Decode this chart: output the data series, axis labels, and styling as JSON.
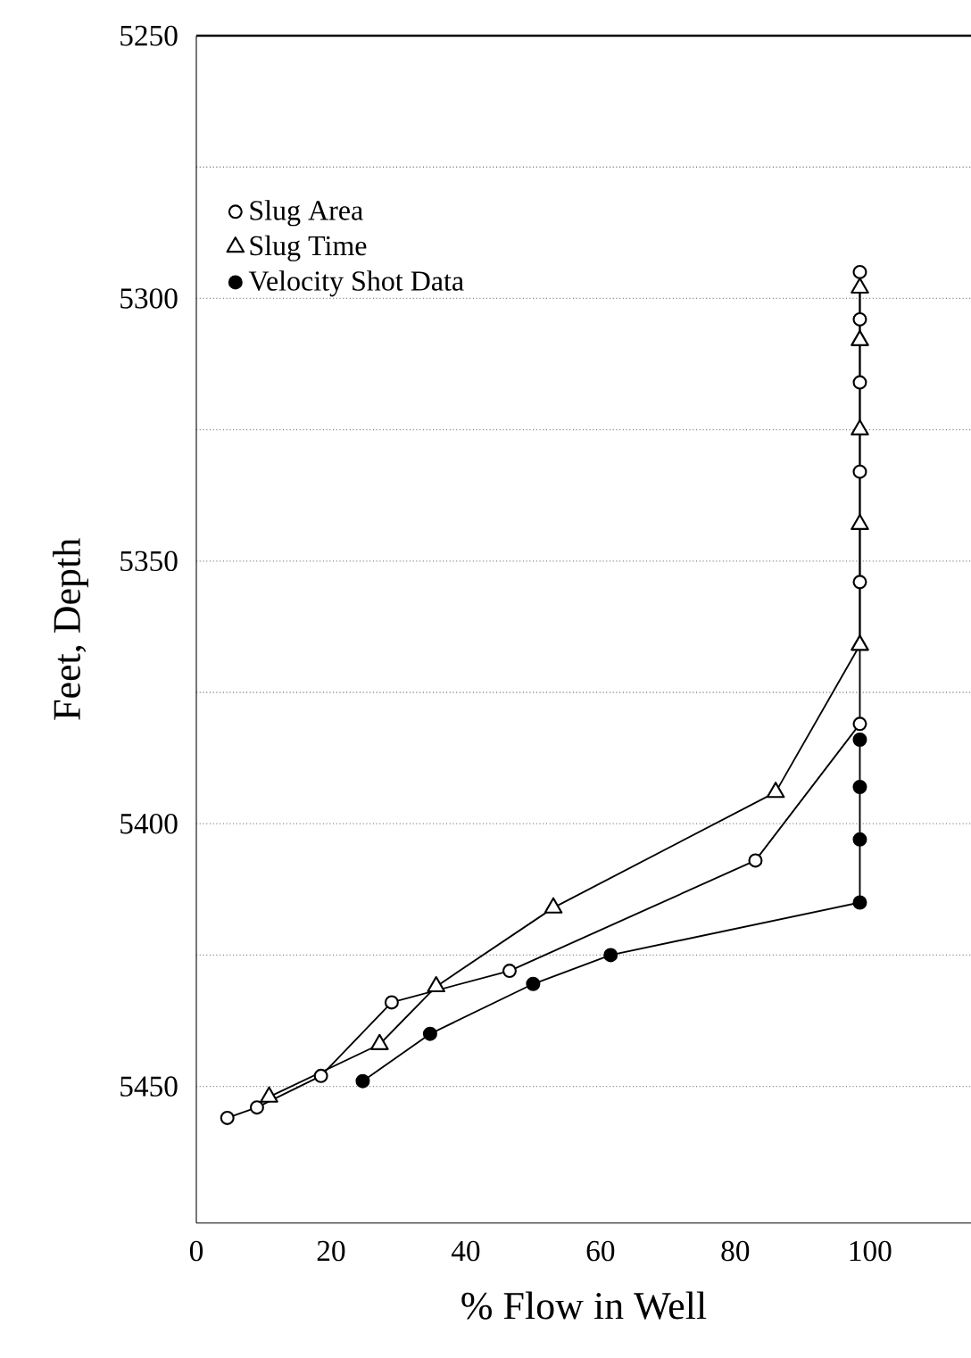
{
  "chart_data": {
    "type": "line",
    "xlabel": "% Flow in Well",
    "ylabel": "Feet, Depth",
    "xlim": [
      0,
      115
    ],
    "xticks": [
      0,
      20,
      40,
      60,
      80,
      100
    ],
    "ylim": [
      5476,
      5250
    ],
    "yticks": [
      5250,
      {
        "value": 5275,
        "label": null
      },
      5300,
      {
        "value": 5325,
        "label": null
      },
      5350,
      {
        "value": 5375,
        "label": null
      },
      5400,
      {
        "value": 5425,
        "label": null
      },
      5450
    ],
    "grid": "y",
    "legend": "top left",
    "line_style": "solid",
    "series": [
      {
        "name": "Slug Area",
        "color": "#ffffff",
        "marker": "circle",
        "x": [
          4.6,
          9,
          18.5,
          29,
          46.5,
          83,
          98.5,
          98.5,
          98.5,
          98.5,
          98.5,
          98.5
        ],
        "values": [
          5456,
          5454,
          5448,
          5434,
          5428,
          5407,
          5381,
          5354,
          5333,
          5316,
          5304,
          5295
        ]
      },
      {
        "name": "Slug Time",
        "color": "#ffffff",
        "marker": "triangle",
        "x": [
          10.8,
          27.2,
          35.6,
          53,
          86,
          98.5,
          98.5,
          98.5,
          98.5,
          98.5
        ],
        "values": [
          5452,
          5442,
          5431,
          5416,
          5394,
          5366,
          5343,
          5325,
          5308,
          5298
        ]
      },
      {
        "name": "Velocity Shot Data",
        "color": "#000000",
        "marker": "circle",
        "x": [
          24.7,
          34.7,
          50,
          61.5,
          98.5,
          98.5,
          98.5,
          98.5
        ],
        "values": [
          5449,
          5440,
          5430.5,
          5425,
          5415,
          5403,
          5393,
          5384
        ]
      }
    ]
  }
}
